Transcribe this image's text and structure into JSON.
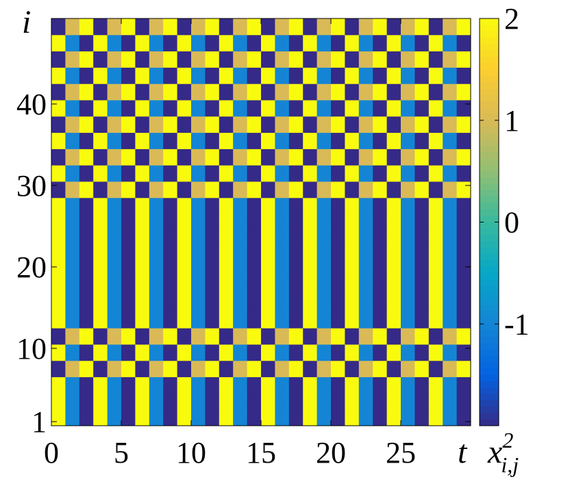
{
  "chart_data": {
    "type": "heatmap",
    "xlabel": "t",
    "ylabel": "i",
    "colorbar_label": {
      "base": "x",
      "sup": "2",
      "sub": "i,j"
    },
    "x": [
      0.5,
      1.5,
      2.5,
      3.5,
      4.5,
      5.5,
      6.5,
      7.5,
      8.5,
      9.5,
      10.5,
      11.5,
      12.5,
      13.5,
      14.5,
      15.5,
      16.5,
      17.5,
      18.5,
      19.5,
      20.5,
      21.5,
      22.5,
      23.5,
      24.5,
      25.5,
      26.5,
      27.5,
      28.5,
      29.5
    ],
    "y": [
      1.5,
      3.5,
      5.5,
      7.5,
      9.5,
      11.5,
      13.5,
      15.5,
      17.5,
      19.5,
      21.5,
      23.5,
      25.5,
      27.5,
      29.5,
      31.5,
      33.5,
      35.5,
      37.5,
      39.5,
      41.5,
      43.5,
      45.5,
      47.5,
      49.5
    ],
    "z": [
      [
        2,
        -1,
        -2,
        2,
        -1,
        -2,
        2,
        -1,
        -2,
        2,
        -1,
        -2,
        2,
        -1,
        -2,
        2,
        -1,
        -2,
        2,
        -1,
        -2,
        2,
        -1,
        -2,
        2,
        -1,
        -2,
        2,
        -1,
        -2
      ],
      [
        2,
        -1,
        -2,
        2,
        -1,
        -2,
        2,
        -1,
        -2,
        2,
        -1,
        -2,
        2,
        -1,
        -2,
        2,
        -1,
        -2,
        2,
        -1,
        -2,
        2,
        -1,
        -2,
        2,
        -1,
        -2,
        2,
        -1,
        -2
      ],
      [
        2,
        -1,
        -2,
        2,
        -1,
        -2,
        2,
        -1,
        -2,
        2,
        -1,
        -2,
        2,
        -1,
        -2,
        2,
        -1,
        -2,
        2,
        -1,
        -2,
        2,
        -1,
        -2,
        2,
        -1,
        -2,
        2,
        -1,
        -2
      ],
      [
        -2,
        1,
        2,
        -2,
        1,
        2,
        -2,
        1,
        2,
        -2,
        1,
        2,
        -2,
        1,
        2,
        -2,
        1,
        2,
        -2,
        1,
        2,
        -2,
        1,
        2,
        -2,
        1,
        2,
        -2,
        1,
        2
      ],
      [
        2,
        -1,
        -2,
        2,
        -1,
        -2,
        2,
        -1,
        -2,
        2,
        -1,
        -2,
        2,
        -1,
        -2,
        2,
        -1,
        -2,
        2,
        -1,
        -2,
        2,
        -1,
        -2,
        2,
        -1,
        -2,
        2,
        -1,
        -2
      ],
      [
        -2,
        1,
        2,
        -2,
        1,
        2,
        -2,
        1,
        2,
        -2,
        1,
        2,
        -2,
        1,
        2,
        -2,
        1,
        2,
        -2,
        1,
        2,
        -2,
        1,
        2,
        -2,
        1,
        2,
        -2,
        1,
        2
      ],
      [
        2,
        -1,
        -2,
        2,
        -1,
        -2,
        2,
        -1,
        -2,
        2,
        -1,
        -2,
        2,
        -1,
        -2,
        2,
        -1,
        -2,
        2,
        -1,
        -2,
        2,
        -1,
        -2,
        2,
        -1,
        -2,
        2,
        -1,
        -2
      ],
      [
        2,
        -1,
        -2,
        2,
        -1,
        -2,
        2,
        -1,
        -2,
        2,
        -1,
        -2,
        2,
        -1,
        -2,
        2,
        -1,
        -2,
        2,
        -1,
        -2,
        2,
        -1,
        -2,
        2,
        -1,
        -2,
        2,
        -1,
        -2
      ],
      [
        2,
        -1,
        -2,
        2,
        -1,
        -2,
        2,
        -1,
        -2,
        2,
        -1,
        -2,
        2,
        -1,
        -2,
        2,
        -1,
        -2,
        2,
        -1,
        -2,
        2,
        -1,
        -2,
        2,
        -1,
        -2,
        2,
        -1,
        -2
      ],
      [
        2,
        -1,
        -2,
        2,
        -1,
        -2,
        2,
        -1,
        -2,
        2,
        -1,
        -2,
        2,
        -1,
        -2,
        2,
        -1,
        -2,
        2,
        -1,
        -2,
        2,
        -1,
        -2,
        2,
        -1,
        -2,
        2,
        -1,
        -2
      ],
      [
        2,
        -1,
        -2,
        2,
        -1,
        -2,
        2,
        -1,
        -2,
        2,
        -1,
        -2,
        2,
        -1,
        -2,
        2,
        -1,
        -2,
        2,
        -1,
        -2,
        2,
        -1,
        -2,
        2,
        -1,
        -2,
        2,
        -1,
        -2
      ],
      [
        2,
        -1,
        -2,
        2,
        -1,
        -2,
        2,
        -1,
        -2,
        2,
        -1,
        -2,
        2,
        -1,
        -2,
        2,
        -1,
        -2,
        2,
        -1,
        -2,
        2,
        -1,
        -2,
        2,
        -1,
        -2,
        2,
        -1,
        -2
      ],
      [
        2,
        -1,
        -2,
        2,
        -1,
        -2,
        2,
        -1,
        -2,
        2,
        -1,
        -2,
        2,
        -1,
        -2,
        2,
        -1,
        -2,
        2,
        -1,
        -2,
        2,
        -1,
        -2,
        2,
        -1,
        -2,
        2,
        -1,
        -2
      ],
      [
        2,
        -1,
        -2,
        2,
        -1,
        -2,
        2,
        -1,
        -2,
        2,
        -1,
        -2,
        2,
        -1,
        -2,
        2,
        -1,
        -2,
        2,
        -1,
        -2,
        2,
        -1,
        -2,
        2,
        -1,
        -2,
        2,
        -1,
        -2
      ],
      [
        -2,
        1,
        2,
        -2,
        1,
        2,
        -2,
        1,
        2,
        -2,
        1,
        2,
        -2,
        1,
        2,
        -2,
        1,
        2,
        -2,
        1,
        2,
        -2,
        1,
        2,
        -2,
        1,
        2,
        -2,
        1,
        2
      ],
      [
        2,
        -1,
        -2,
        2,
        -1,
        -2,
        2,
        -1,
        -2,
        2,
        -1,
        -2,
        2,
        -1,
        -2,
        2,
        -1,
        -2,
        2,
        -1,
        -2,
        2,
        -1,
        -2,
        2,
        -1,
        -2,
        2,
        -1,
        -2
      ],
      [
        -2,
        1,
        2,
        -2,
        1,
        2,
        -2,
        1,
        2,
        -2,
        1,
        2,
        -2,
        1,
        2,
        -2,
        1,
        2,
        -2,
        1,
        2,
        -2,
        1,
        2,
        -2,
        1,
        2,
        -2,
        1,
        2
      ],
      [
        2,
        -1,
        -2,
        2,
        -1,
        -2,
        2,
        -1,
        -2,
        2,
        -1,
        -2,
        2,
        -1,
        -2,
        2,
        -1,
        -2,
        2,
        -1,
        -2,
        2,
        -1,
        -2,
        2,
        -1,
        -2,
        2,
        -1,
        -2
      ],
      [
        -2,
        1,
        2,
        -2,
        1,
        2,
        -2,
        1,
        2,
        -2,
        1,
        2,
        -2,
        1,
        2,
        -2,
        1,
        2,
        -2,
        1,
        2,
        -2,
        1,
        2,
        -2,
        1,
        2,
        -2,
        1,
        2
      ],
      [
        2,
        -1,
        -2,
        2,
        -1,
        -2,
        2,
        -1,
        -2,
        2,
        -1,
        -2,
        2,
        -1,
        -2,
        2,
        -1,
        -2,
        2,
        -1,
        -2,
        2,
        -1,
        -2,
        2,
        -1,
        -2,
        2,
        -1,
        -2
      ],
      [
        -2,
        1,
        2,
        -2,
        1,
        2,
        -2,
        1,
        2,
        -2,
        1,
        2,
        -2,
        1,
        2,
        -2,
        1,
        2,
        -2,
        1,
        2,
        -2,
        1,
        2,
        -2,
        1,
        2,
        -2,
        1,
        2
      ],
      [
        2,
        -1,
        -2,
        2,
        -1,
        -2,
        2,
        -1,
        -2,
        2,
        -1,
        -2,
        2,
        -1,
        -2,
        2,
        -1,
        -2,
        2,
        -1,
        -2,
        2,
        -1,
        -2,
        2,
        -1,
        -2,
        2,
        -1,
        -2
      ],
      [
        -2,
        1,
        2,
        -2,
        1,
        2,
        -2,
        1,
        2,
        -2,
        1,
        2,
        -2,
        1,
        2,
        -2,
        1,
        2,
        -2,
        1,
        2,
        -2,
        1,
        2,
        -2,
        1,
        2,
        -2,
        1,
        2
      ],
      [
        2,
        -1,
        -2,
        2,
        -1,
        -2,
        2,
        -1,
        -2,
        2,
        -1,
        -2,
        2,
        -1,
        -2,
        2,
        -1,
        -2,
        2,
        -1,
        -2,
        2,
        -1,
        -2,
        2,
        -1,
        -2,
        2,
        -1,
        -2
      ],
      [
        -2,
        1,
        2,
        -2,
        1,
        2,
        -2,
        1,
        2,
        -2,
        1,
        2,
        -2,
        1,
        2,
        -2,
        1,
        2,
        -2,
        1,
        2,
        -2,
        1,
        2,
        -2,
        1,
        2,
        -2,
        1,
        2
      ]
    ],
    "xlim": [
      0,
      30
    ],
    "xticks": [
      0,
      5,
      10,
      15,
      20,
      25
    ],
    "ylim": [
      0.5,
      50.5
    ],
    "yticks": [
      1,
      10,
      20,
      30,
      40
    ],
    "clim": [
      -2,
      2
    ],
    "cticks": [
      -1,
      0,
      1,
      2
    ],
    "colormap": [
      "#352a87",
      "#0363e1",
      "#1485d4",
      "#06a7c6",
      "#38b99e",
      "#92bf73",
      "#d9ba56",
      "#fcce2e",
      "#f9fb0e"
    ]
  }
}
